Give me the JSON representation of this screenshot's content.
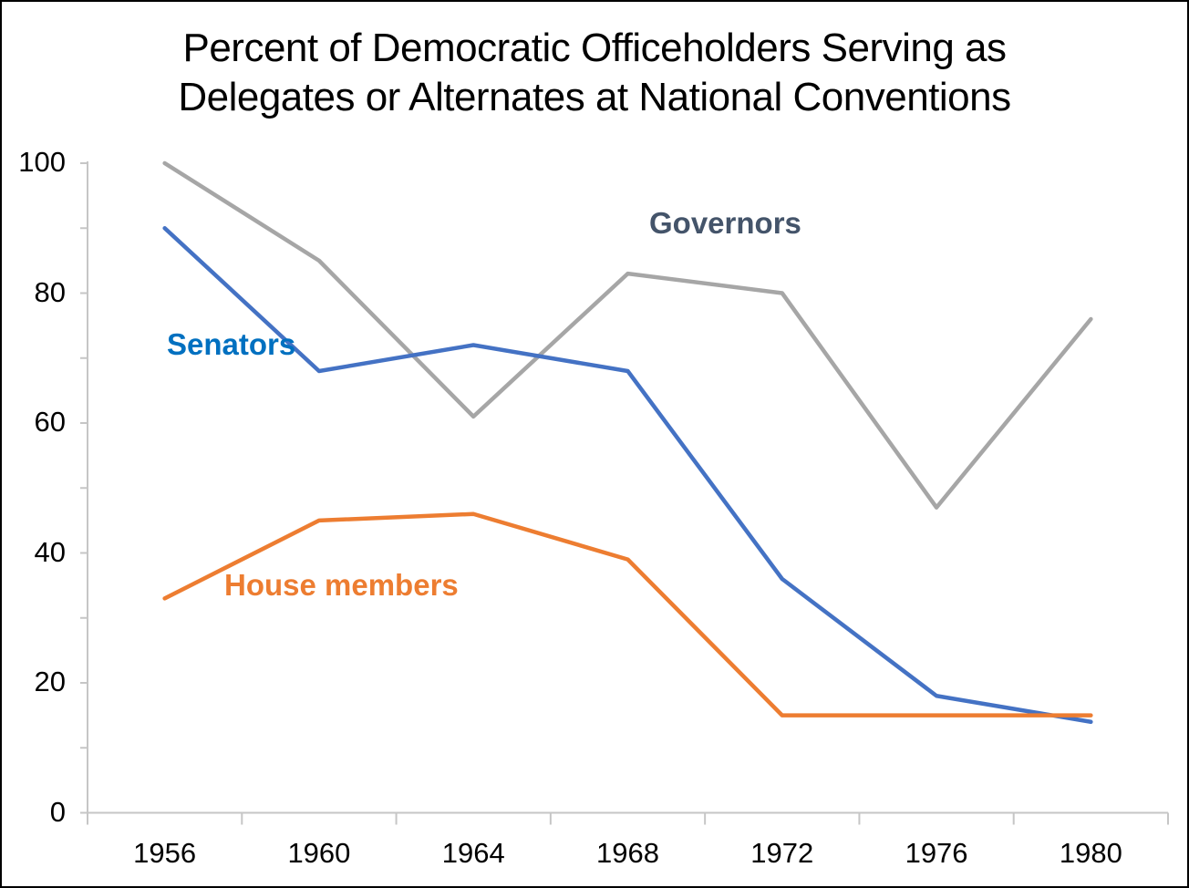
{
  "title": {
    "line1": "Percent of Democratic Officeholders Serving as",
    "line2": "Delegates or Alternates at National Conventions"
  },
  "chart_data": {
    "type": "line",
    "categories": [
      "1956",
      "1960",
      "1964",
      "1968",
      "1972",
      "1976",
      "1980"
    ],
    "series": [
      {
        "name": "Governors",
        "values": [
          100,
          85,
          61,
          83,
          80,
          47,
          76
        ],
        "line_color": "#A6A6A6",
        "label_color": "#44546A"
      },
      {
        "name": "Senators",
        "values": [
          90,
          68,
          72,
          68,
          36,
          18,
          14
        ],
        "line_color": "#4472C4",
        "label_color": "#0070C0"
      },
      {
        "name": "House members",
        "values": [
          33,
          45,
          46,
          39,
          15,
          15,
          15
        ],
        "line_color": "#ED7D31",
        "label_color": "#ED7D31"
      }
    ],
    "xlabel": "",
    "ylabel": "",
    "ylim": [
      0,
      100
    ],
    "ytick_major_step": 20,
    "ytick_minor_step": 10,
    "ytick_labels": [
      "0",
      "20",
      "40",
      "60",
      "80",
      "100"
    ],
    "grid": "off",
    "legend": "inline-labels",
    "axis_color": "#C6C6C6",
    "text_color": "#000000"
  }
}
